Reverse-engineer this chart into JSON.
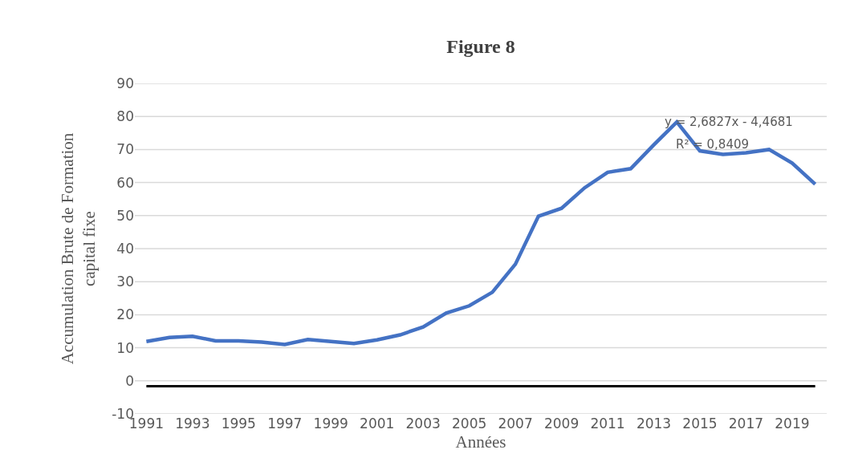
{
  "chart_data": {
    "type": "line",
    "title": "Figure 8",
    "xlabel": "Années",
    "ylabel": "Accumulation Brute de Formation capital fixe",
    "x": [
      1991,
      1992,
      1993,
      1994,
      1995,
      1996,
      1997,
      1998,
      1999,
      2000,
      2001,
      2002,
      2003,
      2004,
      2005,
      2006,
      2007,
      2008,
      2009,
      2010,
      2011,
      2012,
      2013,
      2014,
      2015,
      2016,
      2017,
      2018,
      2019,
      2020
    ],
    "series": [
      {
        "color": "#4472c4",
        "values": [
          11.9,
          13.1,
          13.5,
          12.1,
          12.1,
          11.7,
          11.0,
          12.5,
          11.9,
          11.3,
          12.4,
          13.9,
          16.3,
          20.5,
          22.7,
          26.8,
          35.3,
          49.8,
          52.2,
          58.4,
          63.1,
          64.2,
          71.4,
          78.3,
          69.6,
          68.5,
          69.0,
          70.0,
          65.9,
          59.5
        ]
      },
      {
        "color": "#000000",
        "x": [
          1991,
          2020
        ],
        "values": [
          -1.6,
          -1.6
        ]
      }
    ],
    "annotations": [
      "y = 2,6827x - 4,4681",
      "R² = 0,8409"
    ],
    "xlim": [
      1990.5,
      2020.5
    ],
    "xticks": [
      1991,
      1993,
      1995,
      1997,
      1999,
      2001,
      2003,
      2005,
      2007,
      2009,
      2011,
      2013,
      2015,
      2017,
      2019
    ],
    "ylim": [
      -10,
      90
    ],
    "yticks": [
      -10,
      0,
      10,
      20,
      30,
      40,
      50,
      60,
      70,
      80,
      90
    ],
    "grid": "y",
    "marker": "none",
    "line_style": "solid"
  }
}
